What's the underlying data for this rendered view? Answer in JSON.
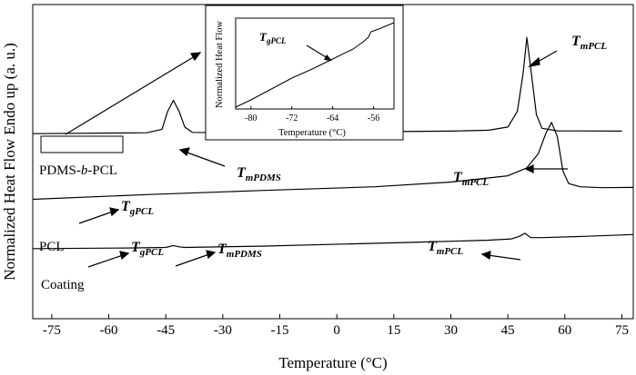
{
  "chart_data": [
    {
      "type": "line",
      "xlabel": "Temperature (°C)",
      "ylabel": "Normalized Heat Flow Endo up (a. u.)",
      "xlim": [
        -80,
        78
      ],
      "ylim": [
        0,
        1
      ],
      "x_ticks": [
        -75,
        -60,
        -45,
        -30,
        -15,
        0,
        15,
        30,
        45,
        60,
        75
      ],
      "y_ticks": [],
      "grid": false,
      "series": [
        {
          "name": "PDMS-b-PCL",
          "points": [
            [
              -80,
              0.589
            ],
            [
              -50,
              0.592
            ],
            [
              -46,
              0.603
            ],
            [
              -44.5,
              0.66
            ],
            [
              -43,
              0.695
            ],
            [
              -41.5,
              0.66
            ],
            [
              -40,
              0.61
            ],
            [
              -38,
              0.593
            ],
            [
              -30,
              0.592
            ],
            [
              0,
              0.594
            ],
            [
              30,
              0.597
            ],
            [
              40,
              0.6
            ],
            [
              45,
              0.61
            ],
            [
              47.5,
              0.66
            ],
            [
              49,
              0.78
            ],
            [
              50,
              0.895
            ],
            [
              51,
              0.8
            ],
            [
              52.5,
              0.65
            ],
            [
              54,
              0.606
            ],
            [
              58,
              0.598
            ],
            [
              75,
              0.597
            ]
          ]
        },
        {
          "name": "PCL",
          "points": [
            [
              -80,
              0.38
            ],
            [
              -50,
              0.395
            ],
            [
              -20,
              0.408
            ],
            [
              10,
              0.42
            ],
            [
              30,
              0.435
            ],
            [
              45,
              0.455
            ],
            [
              50,
              0.48
            ],
            [
              53,
              0.525
            ],
            [
              55,
              0.59
            ],
            [
              56.5,
              0.625
            ],
            [
              58,
              0.58
            ],
            [
              59.5,
              0.47
            ],
            [
              61,
              0.43
            ],
            [
              64,
              0.42
            ],
            [
              70,
              0.417
            ],
            [
              78,
              0.418
            ]
          ]
        },
        {
          "name": "Coating",
          "points": [
            [
              -80,
              0.223
            ],
            [
              -55,
              0.225
            ],
            [
              -45,
              0.227
            ],
            [
              -43,
              0.233
            ],
            [
              -41.5,
              0.229
            ],
            [
              -40,
              0.227
            ],
            [
              -20,
              0.231
            ],
            [
              20,
              0.243
            ],
            [
              40,
              0.25
            ],
            [
              46,
              0.254
            ],
            [
              48,
              0.262
            ],
            [
              49.5,
              0.272
            ],
            [
              51,
              0.258
            ],
            [
              54,
              0.258
            ],
            [
              65,
              0.262
            ],
            [
              78,
              0.268
            ]
          ]
        }
      ],
      "annotations": [
        {
          "text": "T",
          "sub": "mPCL"
        },
        {
          "text": "T",
          "sub": "mPDMS"
        },
        {
          "text": "T",
          "sub": "mPCL"
        },
        {
          "text": "T",
          "sub": "gPCL"
        },
        {
          "text": "T",
          "sub": "gPCL"
        },
        {
          "text": "T",
          "sub": "mPDMS"
        },
        {
          "text": "T",
          "sub": "mPCL"
        }
      ],
      "curve_labels": [
        "PDMS-b-PCL",
        "PCL",
        "Coating"
      ]
    },
    {
      "type": "line",
      "xlabel": "Temperature (°C)",
      "ylabel": "Normalized Heat Flow",
      "xlim": [
        -83,
        -52
      ],
      "ylim": [
        0,
        1
      ],
      "x_ticks": [
        -80,
        -72,
        -64,
        -56
      ],
      "series": [
        {
          "name": "",
          "points": [
            [
              -83,
              0.02
            ],
            [
              -80,
              0.1
            ],
            [
              -76,
              0.22
            ],
            [
              -72,
              0.34
            ],
            [
              -68,
              0.44
            ],
            [
              -64,
              0.55
            ],
            [
              -60,
              0.66
            ],
            [
              -58,
              0.74
            ],
            [
              -57,
              0.79
            ],
            [
              -56.5,
              0.85
            ],
            [
              -55,
              0.88
            ],
            [
              -52,
              0.95
            ]
          ]
        }
      ],
      "annotations": [
        {
          "text": "T",
          "sub": "gPCL"
        }
      ]
    }
  ]
}
